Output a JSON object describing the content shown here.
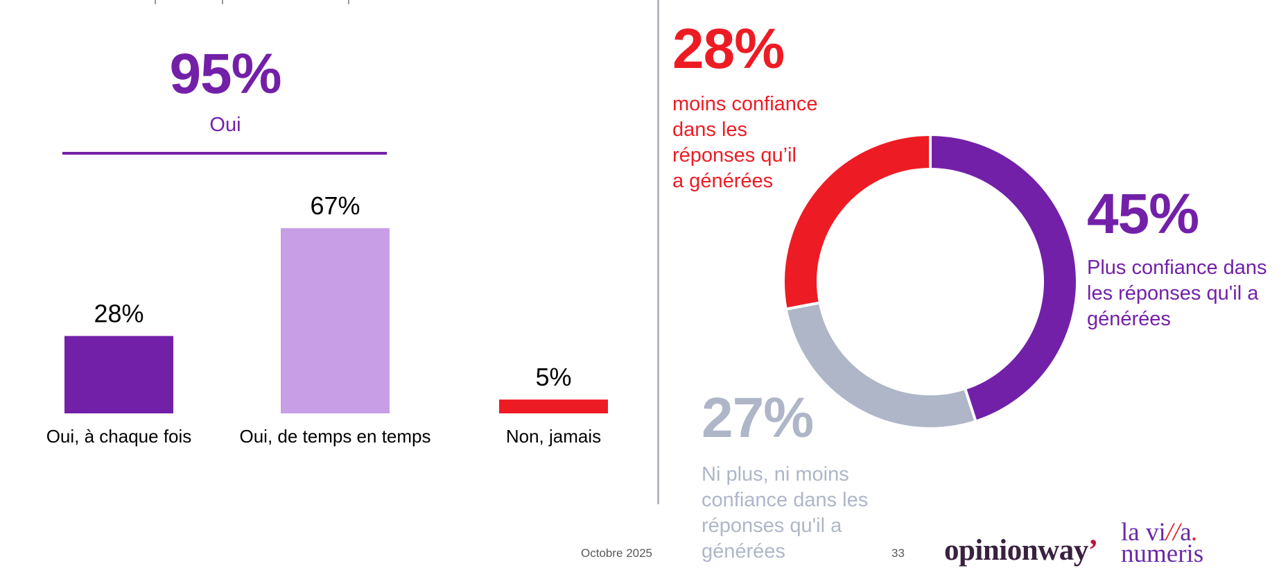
{
  "left_panel": {
    "headline_value": "95%",
    "headline_label": "Oui"
  },
  "chart_data": [
    {
      "type": "bar",
      "title": "",
      "xlabel": "",
      "ylabel": "",
      "categories": [
        "Oui, à chaque fois",
        "Oui, de temps en temps",
        "Non, jamais"
      ],
      "values": [
        28,
        67,
        5
      ],
      "value_labels": [
        "28%",
        "67%",
        "5%"
      ],
      "colors": [
        "#7320a8",
        "#c89ee6",
        "#ed1c24"
      ],
      "ylim": [
        0,
        67
      ],
      "grid": false,
      "legend": "none"
    },
    {
      "type": "pie",
      "variant": "donut",
      "title": "",
      "slices": [
        {
          "label": "Plus confiance dans les réponses qu'il a générées",
          "value": 45,
          "value_label": "45%",
          "color": "#7320a8"
        },
        {
          "label": "Ni plus, ni moins confiance dans les réponses qu'il a générées",
          "value": 27,
          "value_label": "27%",
          "color": "#aeb6c8"
        },
        {
          "label": "moins confiance dans les réponses qu’il a générées",
          "value": 28,
          "value_label": "28%",
          "color": "#ed1c24"
        }
      ],
      "start": "top",
      "direction": "clockwise",
      "legend": "callouts"
    }
  ],
  "callouts": {
    "red": {
      "value": "28%",
      "lines": [
        "moins confiance",
        "dans les",
        "réponses qu’il",
        "a générées"
      ]
    },
    "purple": {
      "value": "45%",
      "lines": [
        "Plus confiance dans",
        "les réponses qu'il a",
        "générées"
      ]
    },
    "grey": {
      "value": "27%",
      "lines": [
        "Ni plus, ni moins",
        "confiance dans les",
        "réponses qu'il a",
        "générées"
      ]
    }
  },
  "footer": {
    "date": "Octobre 2025",
    "page": "33",
    "logo_left": "opinionway",
    "logo_left_mark": "’",
    "logo_right_line1_a": "la vi",
    "logo_right_line1_b": "//",
    "logo_right_line1_c": "a",
    "logo_right_line1_dot": ".",
    "logo_right_line2": "numeris"
  }
}
